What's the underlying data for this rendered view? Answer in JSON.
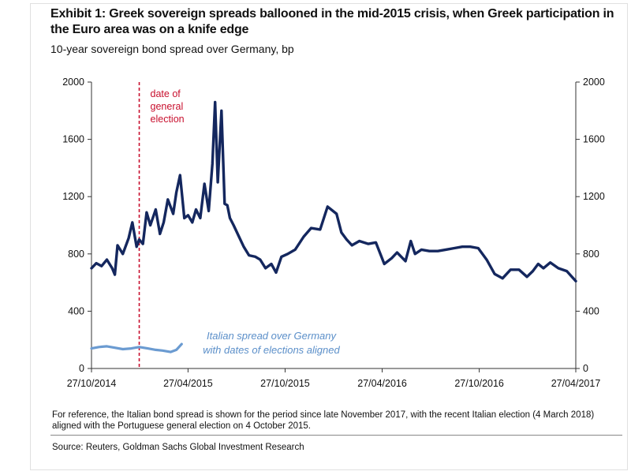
{
  "header": {
    "title": "Exhibit 1: Greek sovereign spreads ballooned in the mid-2015 crisis, when Greek participation in the Euro area was on a knife edge",
    "subtitle": "10-year sovereign bond spread over Germany, bp"
  },
  "footer": {
    "note": "For reference, the Italian bond spread is shown for the period since late November 2017, with the recent Italian election (4 March 2018) aligned with the Portuguese general election on 4 October 2015.",
    "source": "Source: Reuters, Goldman Sachs Global Investment Research"
  },
  "chart_data": {
    "type": "line",
    "title": "Exhibit 1: Greek sovereign spreads ballooned in the mid-2015 crisis, when Greek participation in the Euro area was on a knife edge",
    "subtitle": "10-year sovereign bond spread over Germany, bp",
    "xlabel": "",
    "ylabel": "",
    "xlim": [
      "2014-10-27",
      "2017-04-27"
    ],
    "ylim": [
      0,
      2000
    ],
    "y_ticks": [
      0,
      400,
      800,
      1200,
      1600,
      2000
    ],
    "y_tick_labels": [
      "0",
      "400",
      "800",
      "1200",
      "1600",
      "2000"
    ],
    "x_tick_labels": [
      "27/10/2014",
      "27/04/2015",
      "27/10/2015",
      "27/04/2016",
      "27/10/2016",
      "27/04/2017"
    ],
    "x_ticks": [
      "2014-10-27",
      "2015-04-27",
      "2015-10-27",
      "2016-04-27",
      "2016-10-27",
      "2017-04-27"
    ],
    "secondary_y_axis": true,
    "grid": false,
    "series": [
      {
        "name": "",
        "color": "#14275e",
        "x": [
          "2014-10-27",
          "2014-11-05",
          "2014-11-15",
          "2014-11-25",
          "2014-12-05",
          "2014-12-10",
          "2014-12-15",
          "2014-12-25",
          "2015-01-05",
          "2015-01-12",
          "2015-01-20",
          "2015-01-25",
          "2015-02-01",
          "2015-02-08",
          "2015-02-15",
          "2015-02-25",
          "2015-03-05",
          "2015-03-12",
          "2015-03-20",
          "2015-03-30",
          "2015-04-05",
          "2015-04-12",
          "2015-04-20",
          "2015-04-27",
          "2015-05-05",
          "2015-05-12",
          "2015-05-20",
          "2015-05-28",
          "2015-06-05",
          "2015-06-12",
          "2015-06-17",
          "2015-06-22",
          "2015-06-29",
          "2015-07-05",
          "2015-07-10",
          "2015-07-15",
          "2015-07-22",
          "2015-08-01",
          "2015-08-10",
          "2015-08-20",
          "2015-09-01",
          "2015-09-10",
          "2015-09-20",
          "2015-10-01",
          "2015-10-10",
          "2015-10-20",
          "2015-11-01",
          "2015-11-15",
          "2015-12-01",
          "2015-12-15",
          "2016-01-01",
          "2016-01-15",
          "2016-02-01",
          "2016-02-10",
          "2016-02-20",
          "2016-03-01",
          "2016-03-15",
          "2016-04-01",
          "2016-04-15",
          "2016-05-01",
          "2016-05-15",
          "2016-05-25",
          "2016-06-10",
          "2016-06-20",
          "2016-06-28",
          "2016-07-10",
          "2016-07-25",
          "2016-08-10",
          "2016-08-25",
          "2016-09-10",
          "2016-09-25",
          "2016-10-10",
          "2016-10-25",
          "2016-11-10",
          "2016-11-25",
          "2016-12-10",
          "2016-12-25",
          "2017-01-10",
          "2017-01-25",
          "2017-02-05",
          "2017-02-15",
          "2017-02-25",
          "2017-03-10",
          "2017-03-25",
          "2017-04-10",
          "2017-04-27"
        ],
        "values": [
          700,
          735,
          715,
          760,
          700,
          655,
          860,
          800,
          910,
          1020,
          850,
          900,
          870,
          1090,
          1000,
          1110,
          940,
          1020,
          1180,
          1080,
          1230,
          1350,
          1050,
          1070,
          1020,
          1110,
          1050,
          1290,
          1100,
          1430,
          1860,
          1300,
          1800,
          1150,
          1140,
          1050,
          1000,
          920,
          850,
          790,
          780,
          760,
          700,
          730,
          670,
          780,
          800,
          830,
          920,
          980,
          970,
          1130,
          1080,
          950,
          900,
          860,
          890,
          870,
          880,
          730,
          770,
          810,
          750,
          890,
          800,
          830,
          820,
          820,
          830,
          840,
          850,
          850,
          840,
          760,
          660,
          630,
          690,
          690,
          640,
          680,
          730,
          700,
          740,
          700,
          680,
          610
        ]
      },
      {
        "name": "Italian spread over Germany with dates of elections aligned",
        "color": "#6b9bd1",
        "x": [
          "2014-10-27",
          "2014-11-10",
          "2014-11-25",
          "2014-12-10",
          "2014-12-25",
          "2015-01-10",
          "2015-01-25",
          "2015-02-10",
          "2015-02-25",
          "2015-03-10",
          "2015-03-25",
          "2015-04-05",
          "2015-04-15"
        ],
        "values": [
          140,
          150,
          155,
          145,
          135,
          140,
          150,
          140,
          130,
          125,
          115,
          130,
          170
        ]
      }
    ],
    "annotations": [
      {
        "text": "date of general election",
        "x": "2015-01-25",
        "color": "#c8102e",
        "style": "dashed vertical line"
      },
      {
        "text": "Italian spread over Germany with dates of elections aligned",
        "color": "#6b9bd1"
      }
    ],
    "labels": {
      "election_lines": [
        "date of",
        "general",
        "election"
      ],
      "italy_lines": [
        "Italian spread over Germany",
        "with dates of elections aligned"
      ]
    }
  }
}
